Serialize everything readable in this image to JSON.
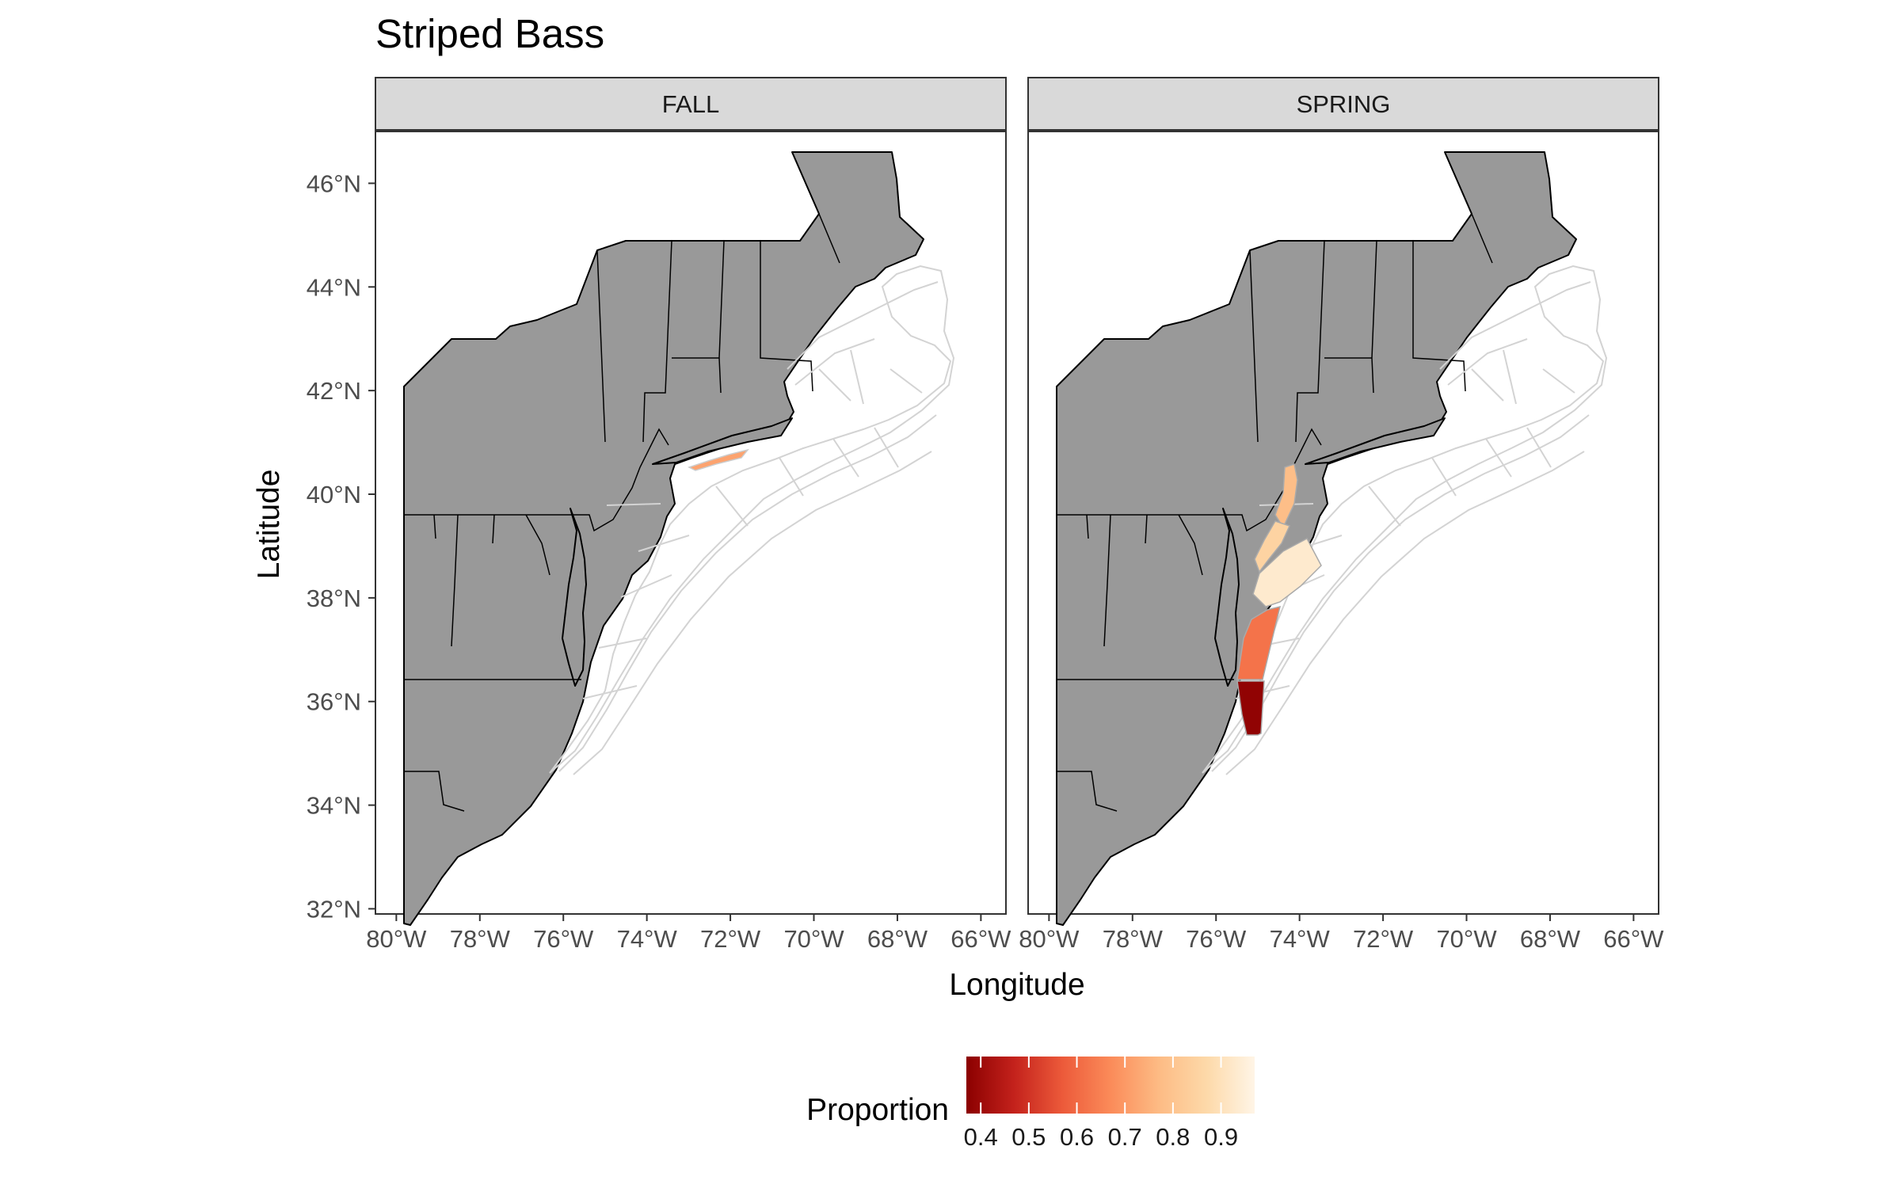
{
  "chart_data": {
    "type": "map",
    "title": "Striped Bass",
    "xlabel": "Longitude",
    "ylabel": "Latitude",
    "xlim": [
      -80.5,
      -65.4
    ],
    "ylim": [
      31.9,
      47.0
    ],
    "x_ticks": [
      -80,
      -78,
      -76,
      -74,
      -72,
      -70,
      -68,
      -66
    ],
    "x_tick_labels": [
      "80°W",
      "78°W",
      "76°W",
      "74°W",
      "72°W",
      "70°W",
      "68°W",
      "66°W"
    ],
    "y_ticks": [
      32,
      34,
      36,
      38,
      40,
      42,
      44,
      46
    ],
    "y_tick_labels": [
      "32°N",
      "34°N",
      "36°N",
      "38°N",
      "40°N",
      "42°N",
      "44°N",
      "46°N"
    ],
    "land_color": "#999999",
    "stratum_outline_color": "#d3d3d3",
    "panels": [
      {
        "name": "FALL",
        "regions": [
          {
            "id": "long-island-south-shore",
            "proportion": 0.72
          }
        ]
      },
      {
        "name": "SPRING",
        "regions": [
          {
            "id": "nj-north-coast",
            "proportion": 0.78
          },
          {
            "id": "nj-south-coast",
            "proportion": 0.85
          },
          {
            "id": "delmarva-offshore",
            "proportion": 0.93
          },
          {
            "id": "virginia-coast",
            "proportion": 0.62
          },
          {
            "id": "north-carolina-coast",
            "proportion": 0.38
          }
        ]
      }
    ],
    "legend": {
      "title": "Proportion",
      "position": "bottom",
      "range": [
        0.37,
        0.97
      ],
      "ticks": [
        0.4,
        0.5,
        0.6,
        0.7,
        0.8,
        0.9
      ],
      "tick_labels": [
        "0.4",
        "0.5",
        "0.6",
        "0.7",
        "0.8",
        "0.9"
      ],
      "colors": [
        "#8b0000",
        "#c4221c",
        "#ec5a3a",
        "#fb8b59",
        "#fdbb84",
        "#fdd9a9",
        "#fff5e6"
      ]
    }
  }
}
